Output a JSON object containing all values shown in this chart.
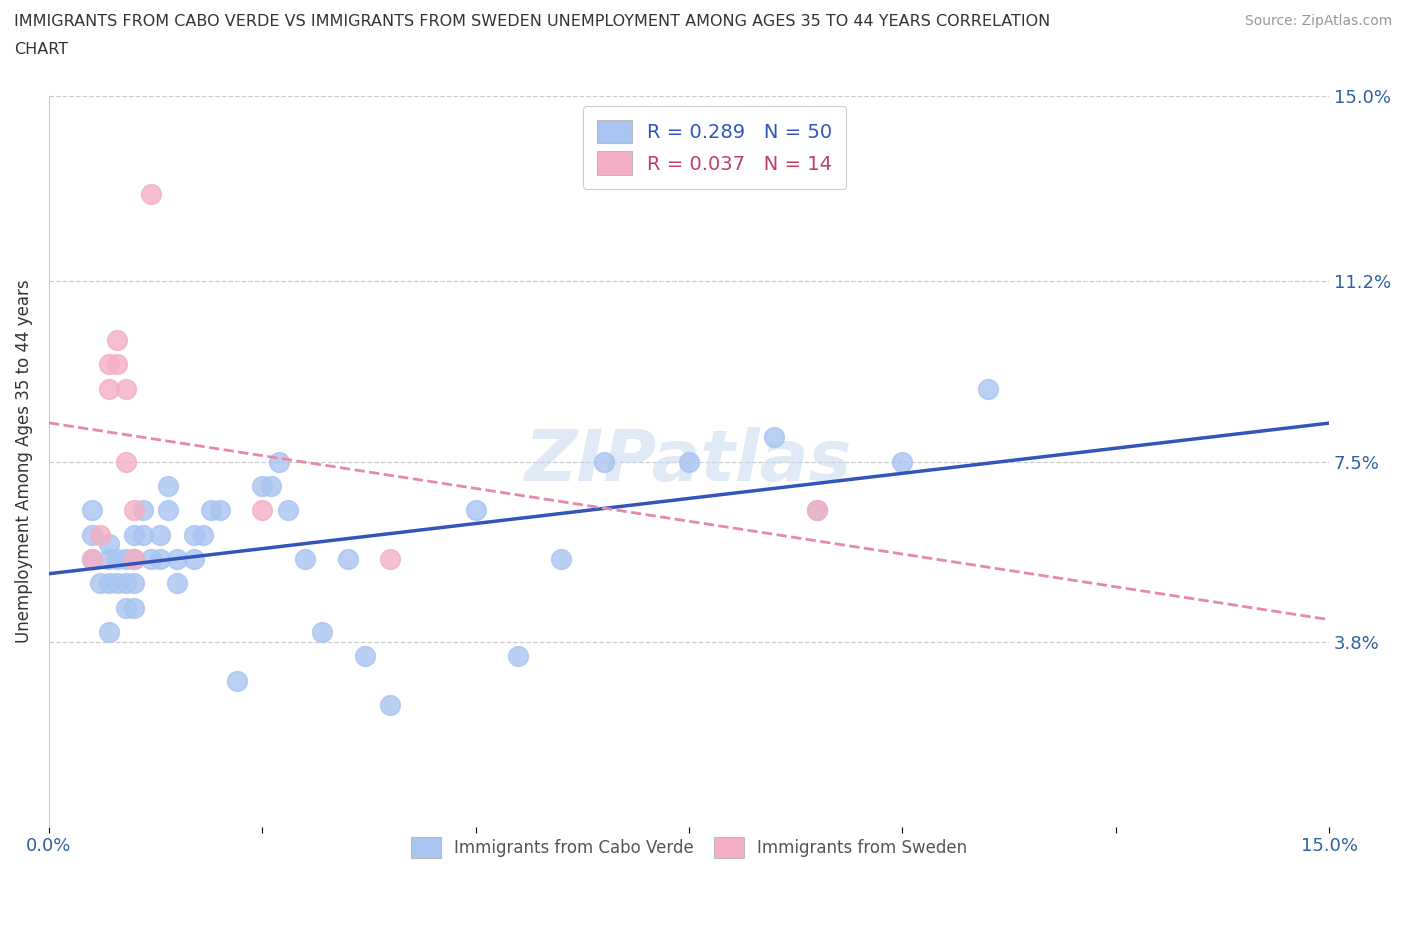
{
  "title_line1": "IMMIGRANTS FROM CABO VERDE VS IMMIGRANTS FROM SWEDEN UNEMPLOYMENT AMONG AGES 35 TO 44 YEARS CORRELATION",
  "title_line2": "CHART",
  "source": "Source: ZipAtlas.com",
  "ylabel": "Unemployment Among Ages 35 to 44 years",
  "xlim": [
    0.0,
    0.15
  ],
  "ylim": [
    0.0,
    0.15
  ],
  "ytick_positions": [
    0.038,
    0.075,
    0.112,
    0.15
  ],
  "ytick_labels": [
    "3.8%",
    "7.5%",
    "11.2%",
    "15.0%"
  ],
  "xtick_positions": [
    0.0,
    0.025,
    0.05,
    0.075,
    0.1,
    0.125,
    0.15
  ],
  "xticklabels": [
    "0.0%",
    "",
    "",
    "",
    "",
    "",
    "15.0%"
  ],
  "cabo_verde_color": "#a8c4f0",
  "sweden_color": "#f4afc4",
  "cabo_verde_line_color": "#3355bb",
  "sweden_line_color": "#e888a8",
  "cabo_verde_x": [
    0.005,
    0.005,
    0.005,
    0.006,
    0.007,
    0.007,
    0.007,
    0.007,
    0.008,
    0.008,
    0.009,
    0.009,
    0.009,
    0.01,
    0.01,
    0.01,
    0.01,
    0.011,
    0.011,
    0.012,
    0.013,
    0.013,
    0.014,
    0.014,
    0.015,
    0.015,
    0.017,
    0.017,
    0.018,
    0.019,
    0.02,
    0.022,
    0.025,
    0.026,
    0.027,
    0.028,
    0.03,
    0.032,
    0.035,
    0.037,
    0.04,
    0.05,
    0.055,
    0.06,
    0.065,
    0.075,
    0.085,
    0.09,
    0.1,
    0.11
  ],
  "cabo_verde_y": [
    0.055,
    0.06,
    0.065,
    0.05,
    0.04,
    0.05,
    0.055,
    0.058,
    0.05,
    0.055,
    0.045,
    0.05,
    0.055,
    0.045,
    0.05,
    0.055,
    0.06,
    0.06,
    0.065,
    0.055,
    0.055,
    0.06,
    0.065,
    0.07,
    0.05,
    0.055,
    0.055,
    0.06,
    0.06,
    0.065,
    0.065,
    0.03,
    0.07,
    0.07,
    0.075,
    0.065,
    0.055,
    0.04,
    0.055,
    0.035,
    0.025,
    0.065,
    0.035,
    0.055,
    0.075,
    0.075,
    0.08,
    0.065,
    0.075,
    0.09
  ],
  "sweden_x": [
    0.005,
    0.006,
    0.007,
    0.007,
    0.008,
    0.008,
    0.009,
    0.009,
    0.01,
    0.01,
    0.012,
    0.025,
    0.04,
    0.09
  ],
  "sweden_y": [
    0.055,
    0.06,
    0.09,
    0.095,
    0.095,
    0.1,
    0.09,
    0.075,
    0.065,
    0.055,
    0.13,
    0.065,
    0.055,
    0.065
  ],
  "background_color": "#ffffff",
  "watermark_text": "ZIPatlas",
  "legend1_label": "R = 0.289   N = 50",
  "legend2_label": "R = 0.037   N = 14",
  "bottom_legend1": "Immigrants from Cabo Verde",
  "bottom_legend2": "Immigrants from Sweden"
}
